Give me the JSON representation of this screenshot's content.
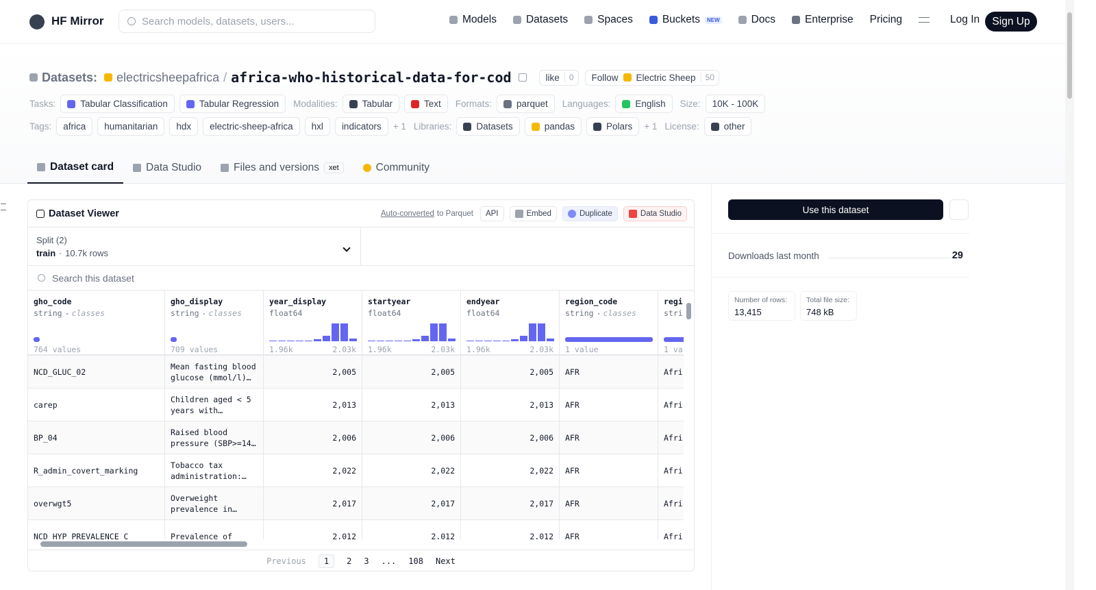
{
  "nav": {
    "brand": "HF Mirror",
    "search_placeholder": "Search models, datasets, users...",
    "links": [
      "Models",
      "Datasets",
      "Spaces",
      "Buckets",
      "Docs",
      "Enterprise",
      "Pricing"
    ],
    "buckets_badge": "NEW",
    "login": "Log In",
    "signup": "Sign Up"
  },
  "header": {
    "prefix": "Datasets:",
    "owner": "electricsheepafrica",
    "separator": "/",
    "name": "africa-who-historical-data-for-cod",
    "like": "like",
    "likes": 0,
    "follow": "Follow",
    "follow_org": "Electric Sheep",
    "followers": 50
  },
  "tag_rows": [
    [
      {
        "label": "Tasks:",
        "items": [
          "Tabular Classification",
          "Tabular Regression"
        ]
      },
      {
        "label": "Modalities:",
        "items": [
          "Tabular",
          "Text"
        ]
      },
      {
        "label": "Formats:",
        "items": [
          "parquet"
        ]
      },
      {
        "label": "Languages:",
        "items": [
          "English"
        ]
      },
      {
        "label": "Size:",
        "items": [
          "10K - 100K"
        ]
      }
    ],
    [
      {
        "label": "Tags:",
        "items": [
          "africa",
          "humanitarian",
          "hdx",
          "electric-sheep-africa",
          "hxl",
          "indicators"
        ],
        "more": "+ 1"
      },
      {
        "label": "Libraries:",
        "items": [
          "Datasets",
          "pandas",
          "Polars"
        ],
        "more": "+ 1"
      },
      {
        "label": "License:",
        "items": [
          "other"
        ]
      }
    ]
  ],
  "tabs": [
    "Dataset card",
    "Data Studio",
    "Files and versions",
    "Community"
  ],
  "xet_badge": "xet",
  "viewer": {
    "title": "Dataset Viewer",
    "auto_link": "Auto-converted",
    "auto_rest": "to Parquet",
    "buttons": [
      "API",
      "Embed",
      "Duplicate",
      "Data Studio"
    ],
    "split_label": "Split (2)",
    "split": "train",
    "split_rows": "10.7k rows",
    "search": "Search this dataset",
    "columns": [
      {
        "name": "gho_code",
        "type": "string",
        "kind": "classes",
        "footer": "764 values"
      },
      {
        "name": "gho_display",
        "type": "string",
        "kind": "classes",
        "footer": "709 values"
      },
      {
        "name": "year_display",
        "type": "float64",
        "min": "1.96k",
        "max": "2.03k",
        "histogram": [
          3,
          3,
          3,
          3,
          5,
          12,
          30,
          100,
          100,
          14
        ]
      },
      {
        "name": "startyear",
        "type": "float64",
        "min": "1.96k",
        "max": "2.03k",
        "histogram": [
          3,
          3,
          3,
          3,
          5,
          12,
          30,
          100,
          100,
          14
        ]
      },
      {
        "name": "endyear",
        "type": "float64",
        "min": "1.96k",
        "max": "2.03k",
        "histogram": [
          3,
          3,
          3,
          3,
          5,
          12,
          30,
          100,
          100,
          14
        ]
      },
      {
        "name": "region_code",
        "type": "string",
        "kind": "classes",
        "footer": "1 value"
      },
      {
        "name": "regi",
        "type": "stri",
        "footer": "1 va"
      }
    ],
    "rows": [
      [
        "NCD_GLUC_02",
        "Mean fasting blood glucose (mmol/l)…",
        "2,005",
        "2,005",
        "2,005",
        "AFR",
        "Afri"
      ],
      [
        "carep",
        "Children aged < 5 years with…",
        "2,013",
        "2,013",
        "2,013",
        "AFR",
        "Afri"
      ],
      [
        "BP_04",
        "Raised blood pressure (SBP>=14…",
        "2,006",
        "2,006",
        "2,006",
        "AFR",
        "Afri"
      ],
      [
        "R_admin_covert_marking",
        "Tobacco tax administration:…",
        "2,022",
        "2,022",
        "2,022",
        "AFR",
        "Afri"
      ],
      [
        "overwgt5",
        "Overweight prevalence in…",
        "2,017",
        "2,017",
        "2,017",
        "AFR",
        "Afri"
      ],
      [
        "NCD_HYP_PREVALENCE_C",
        "Prevalence of",
        "2,012",
        "2,012",
        "2,012",
        "AFR",
        "Afri"
      ]
    ],
    "pagination": {
      "previous": "Previous",
      "pages": [
        "1",
        "2",
        "3",
        "...",
        "108"
      ],
      "next": "Next"
    }
  },
  "sidebar": {
    "use_button": "Use this dataset",
    "downloads_label": "Downloads last month",
    "downloads": 29,
    "rows_label": "Number of rows:",
    "rows": "13,415",
    "size_label": "Total file size:",
    "size": "748 kB"
  }
}
